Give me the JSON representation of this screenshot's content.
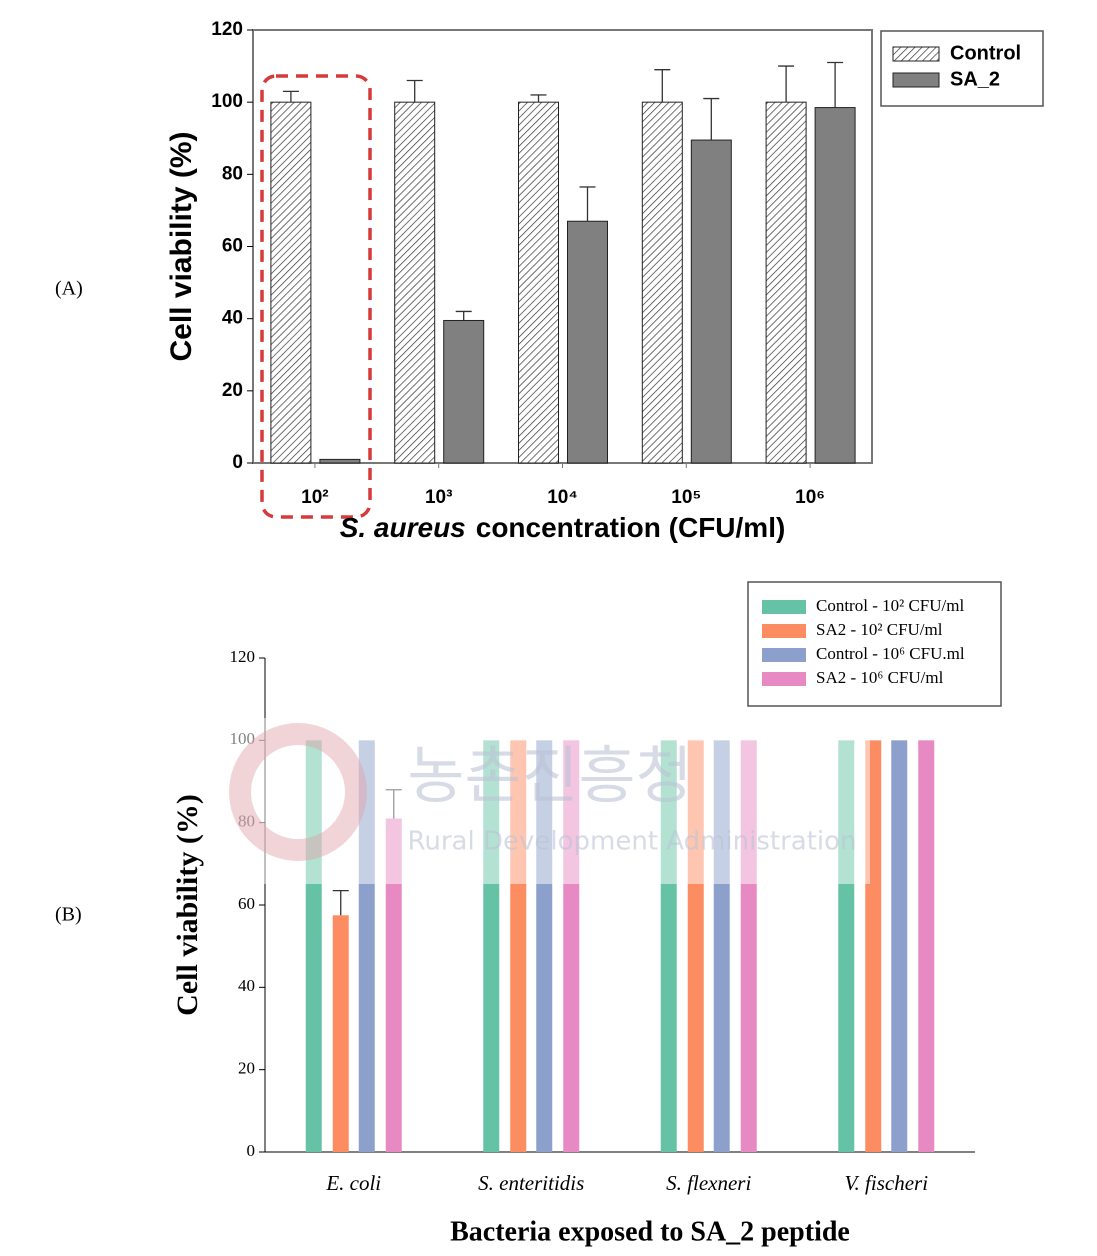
{
  "chart_data": [
    {
      "type": "bar",
      "panel": "(A)",
      "ylabel": "Cell viability (%)",
      "xlabel": [
        "S. aureus",
        "concentration (CFU/ml)"
      ],
      "categories": [
        "10²",
        "10³",
        "10⁴",
        "10⁵",
        "10⁶"
      ],
      "series": [
        {
          "name": "Control",
          "color": "#333333",
          "pattern": "hatch",
          "values": [
            100,
            100,
            100,
            100,
            100
          ],
          "errors": [
            3,
            6,
            2,
            9,
            10
          ]
        },
        {
          "name": "SA_2",
          "color": "#808080",
          "values": [
            1,
            39.5,
            67,
            89.5,
            98.5
          ],
          "errors": [
            null,
            2.5,
            9.5,
            11.5,
            12.5
          ]
        }
      ],
      "ylim": [
        0,
        120
      ],
      "yticks": [
        0,
        20,
        40,
        60,
        80,
        100,
        120
      ],
      "legend": "upper right outside"
    },
    {
      "type": "bar",
      "panel": "(B)",
      "ylabel": "Cell viability (%)",
      "xlabel": "Bacteria exposed to SA_2 peptide",
      "categories": [
        "E. coli",
        "S. enteritidis",
        "S. flexneri",
        "V. fischeri"
      ],
      "series": [
        {
          "name": "Control - 10² CFU/ml",
          "color": "#66c2a5",
          "values": [
            100,
            100,
            100,
            100
          ]
        },
        {
          "name": "SA2 - 10² CFU/ml",
          "color": "#fc8d62",
          "values": [
            57.5,
            100,
            100,
            100
          ],
          "errors": [
            6,
            null,
            null,
            null
          ]
        },
        {
          "name": "Control - 10⁶ CFU.ml",
          "color": "#8da0cb",
          "values": [
            100,
            100,
            100,
            100
          ]
        },
        {
          "name": "SA2 - 10⁶ CFU/ml",
          "color": "#e78ac3",
          "values": [
            81,
            100,
            100,
            100
          ],
          "errors": [
            7,
            null,
            null,
            null
          ]
        }
      ],
      "ylim": [
        0,
        120
      ],
      "yticks": [
        0,
        20,
        40,
        60,
        80,
        100,
        120
      ],
      "legend": "upper right",
      "watermark": [
        "농촌진흥청",
        "Rural Development Administration"
      ]
    }
  ]
}
